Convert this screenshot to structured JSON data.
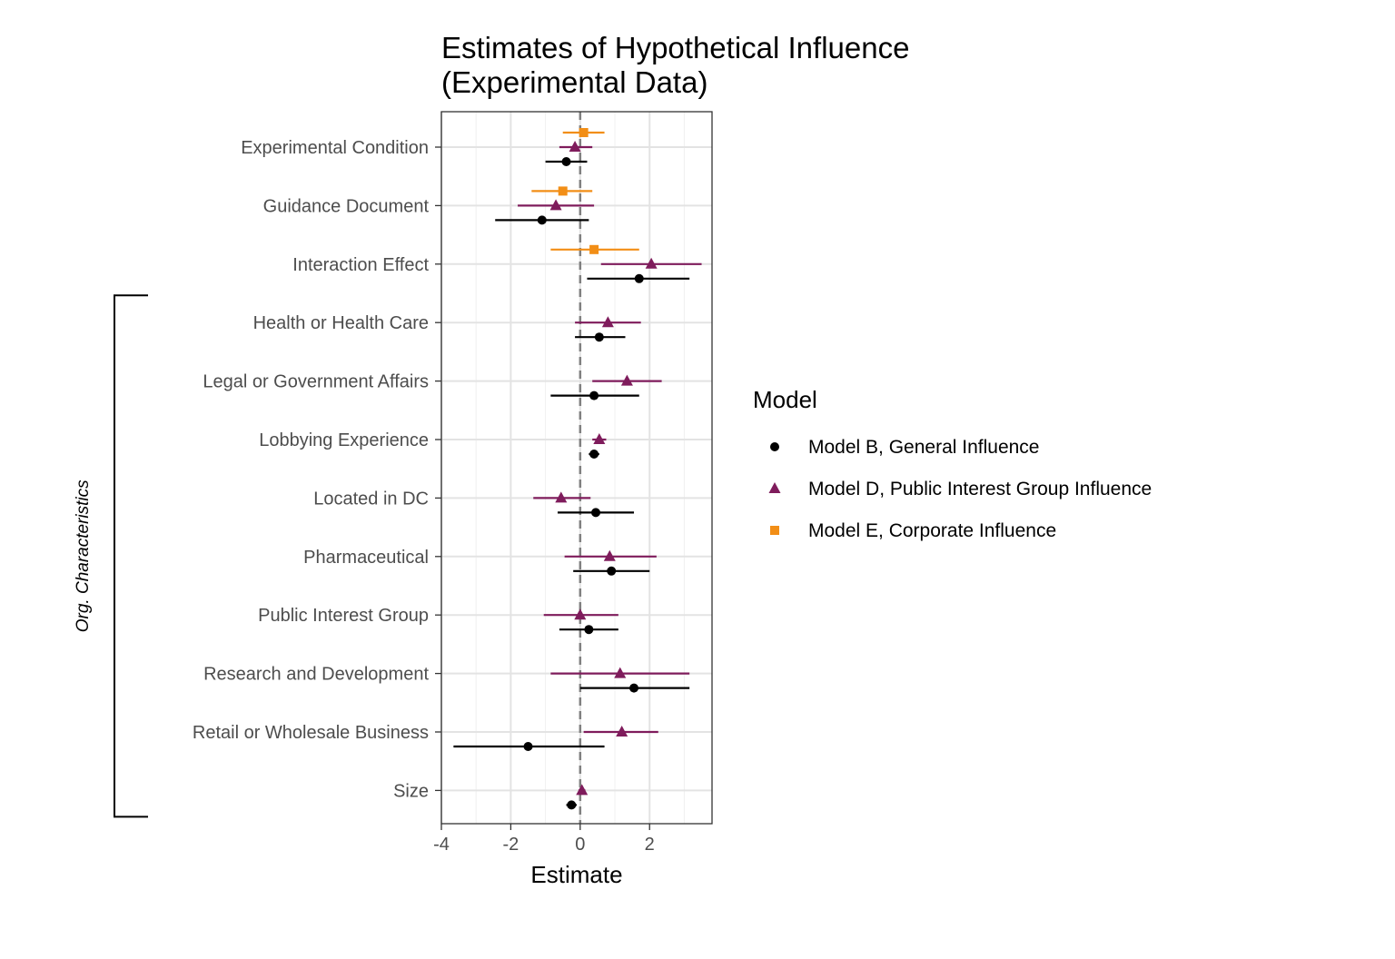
{
  "chart_data": {
    "type": "scatter",
    "title": "Estimates of Hypothetical Influence",
    "subtitle": "(Experimental Data)",
    "xlabel": "Estimate",
    "ylabel": "",
    "xlim": [
      -4,
      3.8
    ],
    "xticks": [
      -4,
      -2,
      0,
      2
    ],
    "xtick_labels": [
      "-4",
      "-2",
      "0",
      "2"
    ],
    "grid": true,
    "reference_line": 0,
    "categories": [
      "Experimental Condition",
      "Guidance Document",
      "Interaction Effect",
      "Health or Health Care",
      "Legal or Government Affairs",
      "Lobbying Experience",
      "Located in DC",
      "Pharmaceutical",
      "Public Interest Group",
      "Research and Development",
      "Retail or Wholesale Business",
      "Size"
    ],
    "bracket": {
      "label": "Org. Characteristics",
      "from": "Health or Health Care",
      "to": "Size"
    },
    "legend": {
      "title": "Model",
      "position": "right"
    },
    "series": [
      {
        "name": "Model B, General  Influence",
        "color": "#000000",
        "shape": "circle",
        "estimates": [
          -0.4,
          -1.1,
          1.7,
          0.55,
          0.4,
          0.4,
          0.45,
          0.9,
          0.25,
          1.55,
          -1.5,
          -0.25
        ],
        "lower": [
          -1.0,
          -2.45,
          0.2,
          -0.15,
          -0.85,
          0.25,
          -0.65,
          -0.2,
          -0.6,
          0.0,
          -3.65,
          -0.4
        ],
        "upper": [
          0.2,
          0.25,
          3.15,
          1.3,
          1.7,
          0.55,
          1.55,
          2.0,
          1.1,
          3.15,
          0.7,
          -0.1
        ]
      },
      {
        "name": "Model D, Public Interest Group Influence",
        "color": "#7f1c5c",
        "shape": "triangle",
        "estimates": [
          -0.15,
          -0.7,
          2.05,
          0.8,
          1.35,
          0.55,
          -0.55,
          0.85,
          0.0,
          1.15,
          1.2,
          0.05
        ],
        "lower": [
          -0.6,
          -1.8,
          0.6,
          -0.15,
          0.35,
          0.35,
          -1.35,
          -0.45,
          -1.05,
          -0.85,
          0.1,
          -0.05
        ],
        "upper": [
          0.35,
          0.4,
          3.5,
          1.75,
          2.35,
          0.75,
          0.3,
          2.2,
          1.1,
          3.15,
          2.25,
          0.15
        ]
      },
      {
        "name": "Model E, Corporate Influence",
        "color": "#f28e16",
        "shape": "square",
        "estimates": [
          0.1,
          -0.5,
          0.4,
          null,
          null,
          null,
          null,
          null,
          null,
          null,
          null,
          null
        ],
        "lower": [
          -0.5,
          -1.4,
          -0.85,
          null,
          null,
          null,
          null,
          null,
          null,
          null,
          null,
          null
        ],
        "upper": [
          0.7,
          0.35,
          1.7,
          null,
          null,
          null,
          null,
          null,
          null,
          null,
          null,
          null
        ]
      }
    ]
  }
}
